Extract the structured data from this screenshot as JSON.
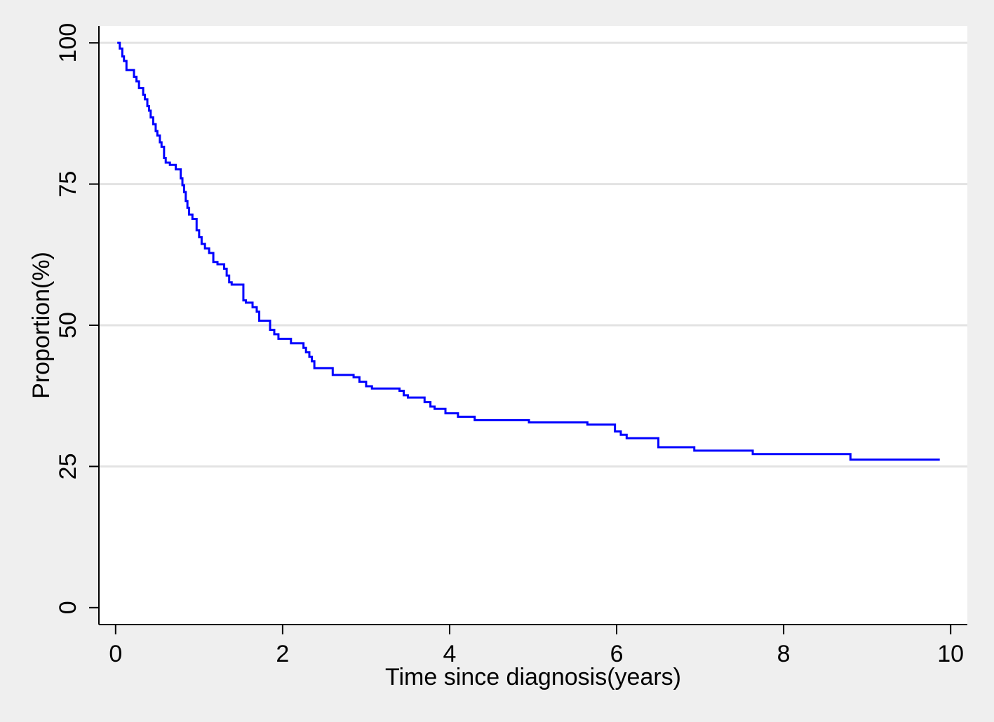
{
  "chart_data": {
    "type": "line",
    "title": "",
    "xlabel": "Time since diagnosis(years)",
    "ylabel": "Proportion(%)",
    "xlim": [
      -0.2,
      10.2
    ],
    "ylim": [
      -3,
      103
    ],
    "xticks": [
      0,
      2,
      4,
      6,
      8,
      10
    ],
    "yticks": [
      0,
      25,
      50,
      75,
      100
    ],
    "grid": "horizontal",
    "legend": "none",
    "step": true,
    "colors": {
      "line": "#0000ff",
      "plot_bg": "#ffffff",
      "page_bg": "#efefef",
      "grid": "#e3e3e3"
    },
    "series": [
      {
        "x": [
          0.02,
          0.05,
          0.08,
          0.1,
          0.13,
          0.18,
          0.22,
          0.25,
          0.28,
          0.33,
          0.35,
          0.38,
          0.4,
          0.42,
          0.45,
          0.48,
          0.5,
          0.53,
          0.55,
          0.58,
          0.6,
          0.65,
          0.72,
          0.78,
          0.8,
          0.82,
          0.84,
          0.86,
          0.88,
          0.92,
          0.97,
          1.0,
          1.03,
          1.07,
          1.12,
          1.17,
          1.22,
          1.3,
          1.33,
          1.36,
          1.39,
          1.53,
          1.56,
          1.64,
          1.69,
          1.72,
          1.75,
          1.85,
          1.9,
          1.95,
          2.1,
          2.25,
          2.28,
          2.32,
          2.35,
          2.38,
          2.42,
          2.6,
          2.85,
          2.92,
          3.0,
          3.07,
          3.4,
          3.45,
          3.5,
          3.7,
          3.77,
          3.82,
          3.95,
          4.1,
          4.3,
          4.95,
          5.65,
          5.98,
          6.05,
          6.12,
          6.5,
          6.55,
          6.93,
          7.63,
          8.8,
          9.87
        ],
        "y": [
          100,
          99,
          97.6,
          96.8,
          95.2,
          95.2,
          94,
          93.2,
          92,
          90.8,
          90,
          88.8,
          88,
          86.8,
          85.6,
          84.4,
          83.6,
          82.4,
          81.6,
          79.6,
          78.8,
          78.4,
          77.6,
          76,
          74.8,
          73.6,
          72,
          70.8,
          69.6,
          68.8,
          66.8,
          65.6,
          64.4,
          63.6,
          62.8,
          61.2,
          60.8,
          60,
          58.8,
          57.6,
          57.2,
          54.4,
          54,
          53.2,
          52.4,
          50.8,
          50.8,
          49.2,
          48.4,
          47.6,
          46.8,
          46,
          45.2,
          44.4,
          43.6,
          42.4,
          42.4,
          41.2,
          40.8,
          40,
          39.2,
          38.8,
          38.4,
          37.6,
          37.2,
          36.4,
          35.6,
          35.2,
          34.4,
          33.8,
          33.2,
          32.8,
          32.4,
          31.2,
          30.6,
          30,
          28.4,
          28.4,
          27.8,
          27.2,
          26.2,
          26.2
        ]
      }
    ]
  }
}
